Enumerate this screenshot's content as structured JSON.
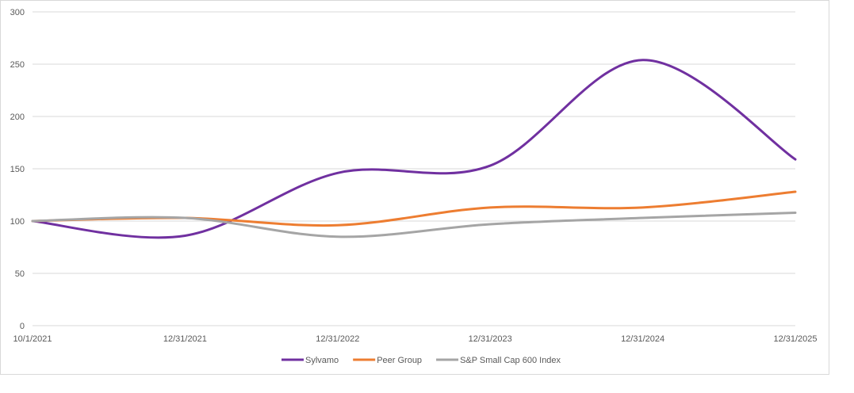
{
  "chart_data": {
    "type": "line",
    "title": "",
    "xlabel": "",
    "ylabel": "",
    "categories": [
      "10/1/2021",
      "12/31/2021",
      "12/31/2022",
      "12/31/2023",
      "12/31/2024",
      "12/31/2025"
    ],
    "ylim": [
      0,
      300
    ],
    "yticks": [
      0,
      50,
      100,
      150,
      200,
      250,
      300
    ],
    "grid": true,
    "smooth": true,
    "legend_position": "bottom",
    "series": [
      {
        "name": "Sylvamo",
        "color": "#7030a0",
        "values": [
          100,
          86,
          146,
          153,
          254,
          159
        ]
      },
      {
        "name": "Peer Group",
        "color": "#ed7d31",
        "values": [
          100,
          103,
          96,
          113,
          113,
          128
        ]
      },
      {
        "name": "S&P Small Cap 600 Index",
        "color": "#a5a5a5",
        "values": [
          100,
          103,
          85,
          97,
          103,
          108
        ]
      }
    ]
  }
}
